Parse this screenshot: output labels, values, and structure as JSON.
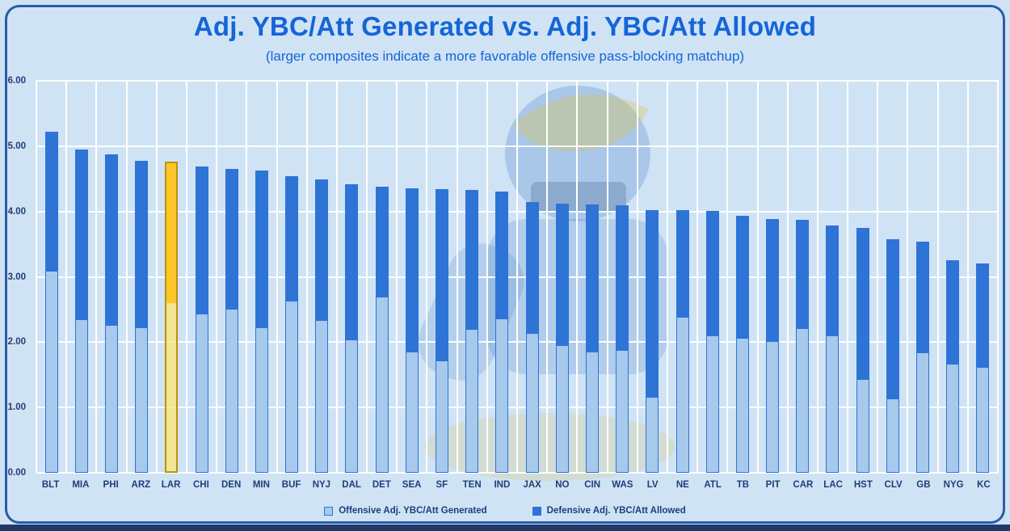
{
  "colors": {
    "background": "#CFE3F5",
    "frame_border": "#2B5CA8",
    "bottom_strip": "#20386B",
    "title": "#1565D8",
    "axis_label": "#1F3E77",
    "grid": "#FFFFFF",
    "series_offense": "#A6C9EC",
    "series_defense": "#2E73D6",
    "highlight_top": "#FFC62B",
    "highlight_bottom": "rgba(251,229,121,0.78)",
    "highlight_border": "#B9930E"
  },
  "chart_data": {
    "type": "bar",
    "stacked": true,
    "title": "Adj. YBC/Att Generated vs. Adj. YBC/Att Allowed",
    "subtitle": "(larger composites indicate a more favorable offensive pass-blocking matchup)",
    "categories": [
      "BLT",
      "MIA",
      "PHI",
      "ARZ",
      "LAR",
      "CHI",
      "DEN",
      "MIN",
      "BUF",
      "NYJ",
      "DAL",
      "DET",
      "SEA",
      "SF",
      "TEN",
      "IND",
      "JAX",
      "NO",
      "CIN",
      "WAS",
      "LV",
      "NE",
      "ATL",
      "TB",
      "PIT",
      "CAR",
      "LAC",
      "HST",
      "CLV",
      "GB",
      "NYG",
      "KC"
    ],
    "series": [
      {
        "name": "Offensive Adj. YBC/Att Generated",
        "values": [
          3.08,
          2.34,
          2.25,
          2.21,
          2.6,
          2.43,
          2.5,
          2.21,
          2.62,
          2.33,
          2.03,
          2.69,
          1.84,
          1.71,
          2.19,
          2.35,
          2.13,
          1.94,
          1.84,
          1.87,
          1.15,
          2.37,
          2.09,
          2.05,
          2.01,
          2.2,
          2.09,
          1.42,
          1.13,
          1.83,
          1.66,
          1.61
        ]
      },
      {
        "name": "Defensive Adj. YBC/Att Allowed",
        "values": [
          2.14,
          2.61,
          2.62,
          2.57,
          2.16,
          2.26,
          2.15,
          2.42,
          1.92,
          2.16,
          2.39,
          1.69,
          2.52,
          2.63,
          2.14,
          1.96,
          2.01,
          2.18,
          2.27,
          2.23,
          2.87,
          1.65,
          1.92,
          1.89,
          1.87,
          1.67,
          1.69,
          2.33,
          2.44,
          1.71,
          1.6,
          1.59
        ]
      }
    ],
    "totals": [
      5.22,
      4.95,
      4.87,
      4.78,
      4.76,
      4.69,
      4.65,
      4.63,
      4.54,
      4.49,
      4.42,
      4.38,
      4.36,
      4.34,
      4.33,
      4.31,
      4.14,
      4.12,
      4.11,
      4.1,
      4.02,
      4.02,
      4.01,
      3.94,
      3.88,
      3.87,
      3.78,
      3.75,
      3.57,
      3.54,
      3.26,
      3.2
    ],
    "highlight": {
      "category": "LAR"
    },
    "ylim": [
      0,
      6
    ],
    "ytick_step": 1,
    "ytick_labels": [
      "0.00",
      "1.00",
      "2.00",
      "3.00",
      "4.00",
      "5.00",
      "6.00"
    ],
    "grid": true,
    "legend_position": "bottom"
  }
}
